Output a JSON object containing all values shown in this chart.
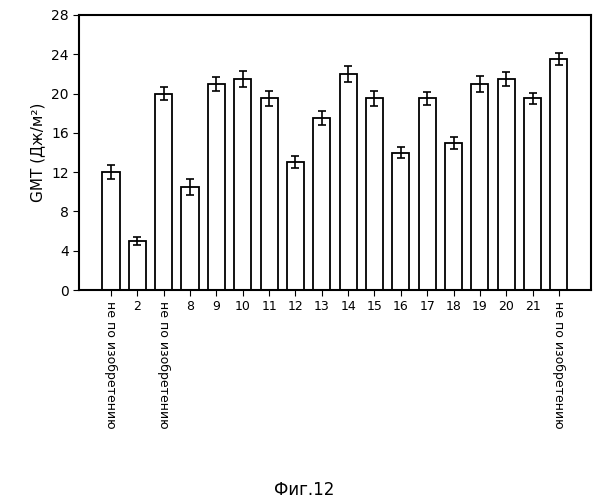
{
  "categories": [
    "1",
    "2",
    "7",
    "8",
    "9",
    "10",
    "11",
    "12",
    "13",
    "14",
    "15",
    "16",
    "17",
    "18",
    "19",
    "20",
    "21",
    "3"
  ],
  "values": [
    12.0,
    5.0,
    20.0,
    10.5,
    21.0,
    21.5,
    19.5,
    13.0,
    17.5,
    22.0,
    19.5,
    14.0,
    19.5,
    15.0,
    21.0,
    21.5,
    19.5,
    23.5
  ],
  "errors": [
    0.7,
    0.4,
    0.7,
    0.8,
    0.7,
    0.8,
    0.8,
    0.6,
    0.7,
    0.8,
    0.8,
    0.6,
    0.7,
    0.6,
    0.8,
    0.7,
    0.6,
    0.6
  ],
  "bar_color": "#ffffff",
  "bar_edgecolor": "#000000",
  "error_color": "#000000",
  "ylabel": "GMT (Дж/м²)",
  "ylim": [
    0,
    28
  ],
  "yticks": [
    0,
    4,
    8,
    12,
    16,
    20,
    24,
    28
  ],
  "caption": "Фиг.12",
  "not_invention_text": "не по изобретению",
  "not_invention_indices": [
    0,
    2,
    17
  ],
  "number_labels": {
    "1": "",
    "2": "2",
    "7": "",
    "8": "8",
    "9": "9",
    "10": "10",
    "11": "11",
    "12": "12",
    "13": "13",
    "14": "14",
    "15": "15",
    "16": "16",
    "17": "17",
    "18": "18",
    "19": "19",
    "20": "20",
    "21": "21",
    "3": ""
  },
  "tick_numbers": [
    "",
    "2",
    "",
    "8",
    "9",
    "10",
    "11",
    "12",
    "13",
    "14",
    "15",
    "16",
    "17",
    "18",
    "19",
    "20",
    "21",
    ""
  ],
  "background_color": "#ffffff",
  "figsize": [
    6.09,
    5.0
  ],
  "dpi": 100
}
